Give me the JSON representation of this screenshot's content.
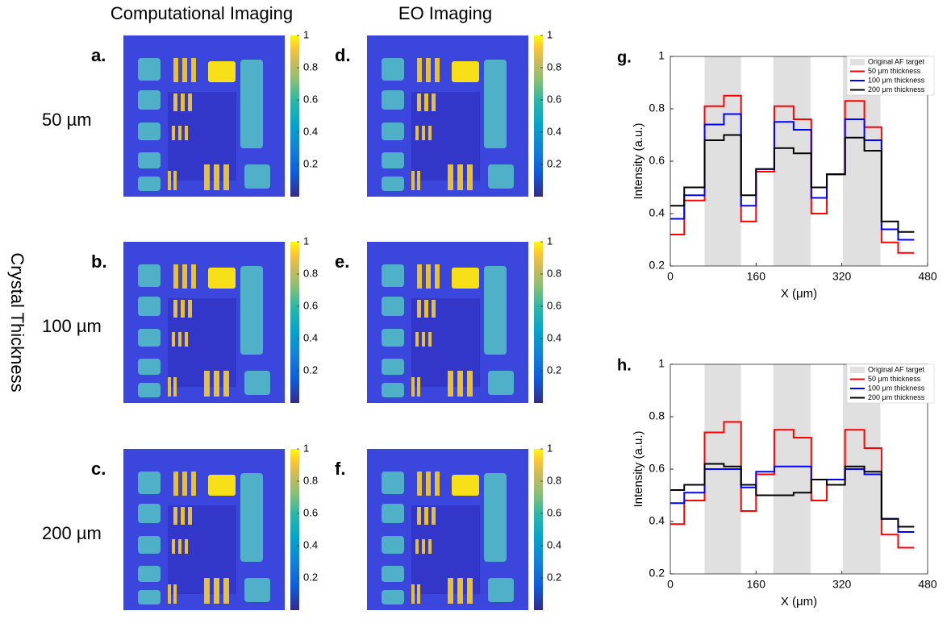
{
  "column_titles": [
    "Computational Imaging",
    "EO Imaging"
  ],
  "row_title": "Crystal Thickness",
  "row_labels": [
    "50 µm",
    "100 µm",
    "200 µm"
  ],
  "panel_labels": [
    [
      "a.",
      "b.",
      "c."
    ],
    [
      "d.",
      "e.",
      "f."
    ]
  ],
  "colorbar": {
    "lim": [
      0,
      1
    ],
    "ticks": [
      0.2,
      0.4,
      0.6,
      0.8,
      1
    ]
  },
  "chart_data": [
    {
      "type": "line",
      "panel_label": "g.",
      "xlabel": "X (μm)",
      "ylabel": "Intensity (a.u.)",
      "xlim": [
        0,
        480
      ],
      "xticks": [
        0,
        160,
        320,
        480
      ],
      "ylim": [
        0.2,
        1
      ],
      "yticks": [
        0.2,
        0.4,
        0.6,
        0.8,
        1
      ],
      "legend": "upper right",
      "bands": {
        "name": "Original AF target",
        "color": "#e0e0e0",
        "ranges": [
          [
            64,
            132
          ],
          [
            192,
            262
          ],
          [
            322,
            392
          ]
        ]
      },
      "x": [
        0,
        26,
        64,
        100,
        132,
        160,
        194,
        230,
        263,
        292,
        326,
        362,
        394,
        425,
        455
      ],
      "series": [
        {
          "name": "50 μm thickness",
          "color": "#ff0000",
          "values": [
            0.32,
            0.45,
            0.81,
            0.85,
            0.37,
            0.56,
            0.81,
            0.76,
            0.4,
            0.55,
            0.83,
            0.73,
            0.29,
            0.25,
            0.25
          ]
        },
        {
          "name": "100 μm thickness",
          "color": "#0000ff",
          "values": [
            0.38,
            0.47,
            0.74,
            0.78,
            0.43,
            0.57,
            0.75,
            0.72,
            0.46,
            0.55,
            0.76,
            0.68,
            0.34,
            0.3,
            0.3
          ]
        },
        {
          "name": "200 μm thickness",
          "color": "#000000",
          "values": [
            0.43,
            0.5,
            0.68,
            0.7,
            0.47,
            0.57,
            0.65,
            0.63,
            0.5,
            0.55,
            0.69,
            0.64,
            0.37,
            0.33,
            0.33
          ]
        }
      ]
    },
    {
      "type": "line",
      "panel_label": "h.",
      "xlabel": "X (μm)",
      "ylabel": "Intensity (a.u.)",
      "xlim": [
        0,
        480
      ],
      "xticks": [
        0,
        160,
        320,
        480
      ],
      "ylim": [
        0.2,
        1
      ],
      "yticks": [
        0.2,
        0.4,
        0.6,
        0.8,
        1
      ],
      "legend": "upper right",
      "bands": {
        "name": "Original AF target",
        "color": "#e0e0e0",
        "ranges": [
          [
            64,
            132
          ],
          [
            192,
            262
          ],
          [
            322,
            392
          ]
        ]
      },
      "x": [
        0,
        26,
        64,
        100,
        132,
        160,
        194,
        230,
        263,
        292,
        326,
        362,
        394,
        425,
        455
      ],
      "series": [
        {
          "name": "50 μm thickness",
          "color": "#ff0000",
          "values": [
            0.39,
            0.48,
            0.74,
            0.78,
            0.44,
            0.58,
            0.75,
            0.72,
            0.48,
            0.56,
            0.75,
            0.68,
            0.35,
            0.3,
            0.3
          ]
        },
        {
          "name": "100 μm thickness",
          "color": "#0000ff",
          "values": [
            0.47,
            0.51,
            0.6,
            0.6,
            0.53,
            0.59,
            0.61,
            0.61,
            0.56,
            0.56,
            0.6,
            0.58,
            0.41,
            0.36,
            0.36
          ]
        },
        {
          "name": "200 μm thickness",
          "color": "#000000",
          "values": [
            0.52,
            0.54,
            0.62,
            0.61,
            0.54,
            0.5,
            0.5,
            0.51,
            0.56,
            0.54,
            0.61,
            0.59,
            0.41,
            0.38,
            0.38
          ]
        }
      ]
    }
  ]
}
